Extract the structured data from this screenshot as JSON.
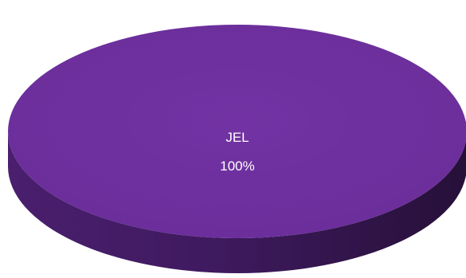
{
  "chart_data": {
    "type": "pie",
    "title": "",
    "slices": [
      {
        "label": "JEL",
        "value": 100,
        "percent_label": "100%",
        "color": "#7030A0"
      }
    ],
    "three_d": true,
    "legend": "none"
  }
}
